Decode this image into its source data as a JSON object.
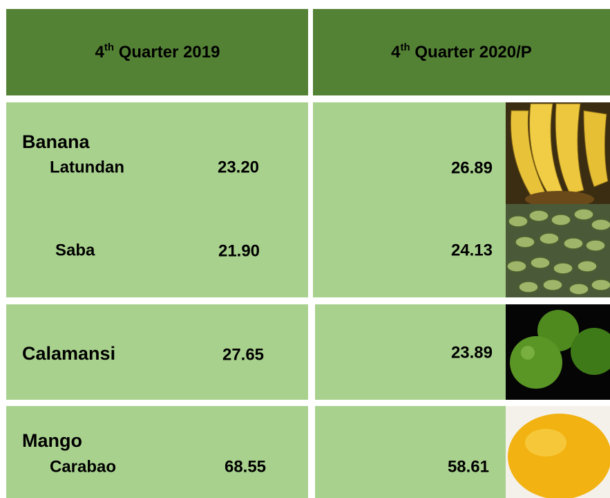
{
  "header": {
    "left": {
      "number": "4",
      "suffix": "th",
      "rest": " Quarter 2019"
    },
    "right": {
      "number": "4",
      "suffix": "th",
      "rest": " Quarter 2020/P"
    }
  },
  "groups": [
    {
      "name": "Banana",
      "items": [
        {
          "name": "Latundan",
          "q2019": "23.20",
          "q2020": "26.89"
        },
        {
          "name": "Saba",
          "q2019": "21.90",
          "q2020": "24.13"
        }
      ]
    },
    {
      "name": "Calamansi",
      "q2019": "27.65",
      "q2020": "23.89"
    },
    {
      "name": "Mango",
      "items": [
        {
          "name": "Carabao",
          "q2019": "68.55",
          "q2020": "58.61"
        }
      ]
    }
  ]
}
